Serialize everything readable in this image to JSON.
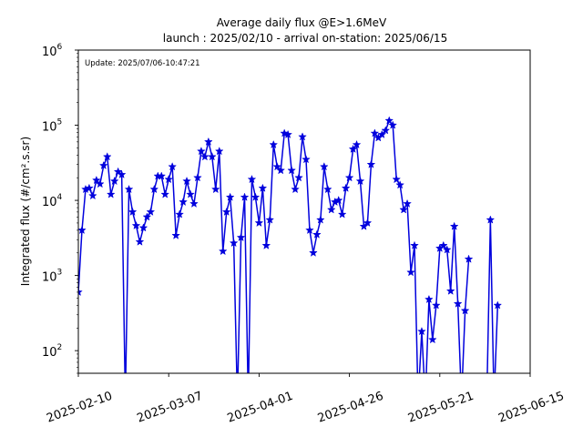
{
  "chart_data": {
    "type": "line",
    "title_line1": "Average daily flux @E>1.6MeV",
    "title_line2": "launch : 2025/02/10 - arrival on-station: 2025/06/15",
    "annotation": "Update: 2025/07/06-10:47:21",
    "ylabel": "Integrated flux (#/cm².s.sr)",
    "xlim": [
      "2025-02-10",
      "2025-06-15"
    ],
    "ylim": [
      50,
      1000000
    ],
    "y_scale": "log",
    "y_ticks": [
      {
        "base": "10",
        "exp": "2",
        "value": 100
      },
      {
        "base": "10",
        "exp": "3",
        "value": 1000
      },
      {
        "base": "10",
        "exp": "4",
        "value": 10000
      },
      {
        "base": "10",
        "exp": "5",
        "value": 100000
      },
      {
        "base": "10",
        "exp": "6",
        "value": 1000000
      }
    ],
    "x_ticks": [
      "2025-02-10",
      "2025-03-07",
      "2025-04-01",
      "2025-04-26",
      "2025-05-21",
      "2025-06-15"
    ],
    "grid": false,
    "series_color": "#0000dd",
    "series": [
      {
        "values": [
          [
            "2025-02-10",
            600
          ],
          [
            "2025-02-11",
            4000
          ],
          [
            "2025-02-12",
            14000
          ],
          [
            "2025-02-13",
            14500
          ],
          [
            "2025-02-14",
            11500
          ],
          [
            "2025-02-15",
            18500
          ],
          [
            "2025-02-16",
            16500
          ],
          [
            "2025-02-17",
            29000
          ],
          [
            "2025-02-18",
            38000
          ],
          [
            "2025-02-19",
            12000
          ],
          [
            "2025-02-20",
            18000
          ],
          [
            "2025-02-21",
            24000
          ],
          [
            "2025-02-22",
            22000
          ],
          [
            "2025-02-23",
            0
          ],
          [
            "2025-02-24",
            14000
          ],
          [
            "2025-02-25",
            7000
          ],
          [
            "2025-02-26",
            4600
          ],
          [
            "2025-02-27",
            2800
          ],
          [
            "2025-02-28",
            4300
          ],
          [
            "2025-03-01",
            6000
          ],
          [
            "2025-03-02",
            7000
          ],
          [
            "2025-03-03",
            14000
          ],
          [
            "2025-03-04",
            21000
          ],
          [
            "2025-03-05",
            21000
          ],
          [
            "2025-03-06",
            12000
          ],
          [
            "2025-03-07",
            19000
          ],
          [
            "2025-03-08",
            28000
          ],
          [
            "2025-03-09",
            3400
          ],
          [
            "2025-03-10",
            6500
          ],
          [
            "2025-03-11",
            9500
          ],
          [
            "2025-03-12",
            18000
          ],
          [
            "2025-03-13",
            12000
          ],
          [
            "2025-03-14",
            9000
          ],
          [
            "2025-03-15",
            20000
          ],
          [
            "2025-03-16",
            45000
          ],
          [
            "2025-03-17",
            38000
          ],
          [
            "2025-03-18",
            60000
          ],
          [
            "2025-03-19",
            38000
          ],
          [
            "2025-03-20",
            14000
          ],
          [
            "2025-03-21",
            45000
          ],
          [
            "2025-03-22",
            2100
          ],
          [
            "2025-03-23",
            7000
          ],
          [
            "2025-03-24",
            11000
          ],
          [
            "2025-03-25",
            2700
          ],
          [
            "2025-03-26",
            0
          ],
          [
            "2025-03-27",
            3200
          ],
          [
            "2025-03-28",
            11000
          ],
          [
            "2025-03-29",
            0
          ],
          [
            "2025-03-30",
            19000
          ],
          [
            "2025-03-31",
            11000
          ],
          [
            "2025-04-01",
            5000
          ],
          [
            "2025-04-02",
            14500
          ],
          [
            "2025-04-03",
            2500
          ],
          [
            "2025-04-04",
            5500
          ],
          [
            "2025-04-05",
            55000
          ],
          [
            "2025-04-06",
            28000
          ],
          [
            "2025-04-07",
            25000
          ],
          [
            "2025-04-08",
            78000
          ],
          [
            "2025-04-09",
            75000
          ],
          [
            "2025-04-10",
            25000
          ],
          [
            "2025-04-11",
            14000
          ],
          [
            "2025-04-12",
            20000
          ],
          [
            "2025-04-13",
            70000
          ],
          [
            "2025-04-14",
            35000
          ],
          [
            "2025-04-15",
            4000
          ],
          [
            "2025-04-16",
            2000
          ],
          [
            "2025-04-17",
            3500
          ],
          [
            "2025-04-18",
            5500
          ],
          [
            "2025-04-19",
            28000
          ],
          [
            "2025-04-20",
            14000
          ],
          [
            "2025-04-21",
            7500
          ],
          [
            "2025-04-22",
            9500
          ],
          [
            "2025-04-23",
            10000
          ],
          [
            "2025-04-24",
            6500
          ],
          [
            "2025-04-25",
            14500
          ],
          [
            "2025-04-26",
            20000
          ],
          [
            "2025-04-27",
            48000
          ],
          [
            "2025-04-28",
            55000
          ],
          [
            "2025-04-29",
            18000
          ],
          [
            "2025-04-30",
            4500
          ],
          [
            "2025-05-01",
            5000
          ],
          [
            "2025-05-02",
            30000
          ],
          [
            "2025-05-03",
            78000
          ],
          [
            "2025-05-04",
            68000
          ],
          [
            "2025-05-05",
            75000
          ],
          [
            "2025-05-06",
            85000
          ],
          [
            "2025-05-07",
            115000
          ],
          [
            "2025-05-08",
            100000
          ],
          [
            "2025-05-09",
            19000
          ],
          [
            "2025-05-10",
            16000
          ],
          [
            "2025-05-11",
            7500
          ],
          [
            "2025-05-12",
            9000
          ],
          [
            "2025-05-13",
            1100
          ],
          [
            "2025-05-14",
            2500
          ],
          [
            "2025-05-15",
            0
          ],
          [
            "2025-05-16",
            180
          ],
          [
            "2025-05-17",
            0
          ],
          [
            "2025-05-18",
            480
          ],
          [
            "2025-05-19",
            140
          ],
          [
            "2025-05-20",
            400
          ],
          [
            "2025-05-21",
            2300
          ],
          [
            "2025-05-22",
            2500
          ],
          [
            "2025-05-23",
            2200
          ],
          [
            "2025-05-24",
            620
          ],
          [
            "2025-05-25",
            4500
          ],
          [
            "2025-05-26",
            420
          ],
          [
            "2025-05-27",
            0
          ],
          [
            "2025-05-28",
            340
          ],
          [
            "2025-05-29",
            1650
          ],
          [
            "2025-06-03",
            0
          ],
          [
            "2025-06-04",
            5500
          ],
          [
            "2025-06-05",
            0
          ],
          [
            "2025-06-06",
            400
          ]
        ]
      }
    ]
  }
}
